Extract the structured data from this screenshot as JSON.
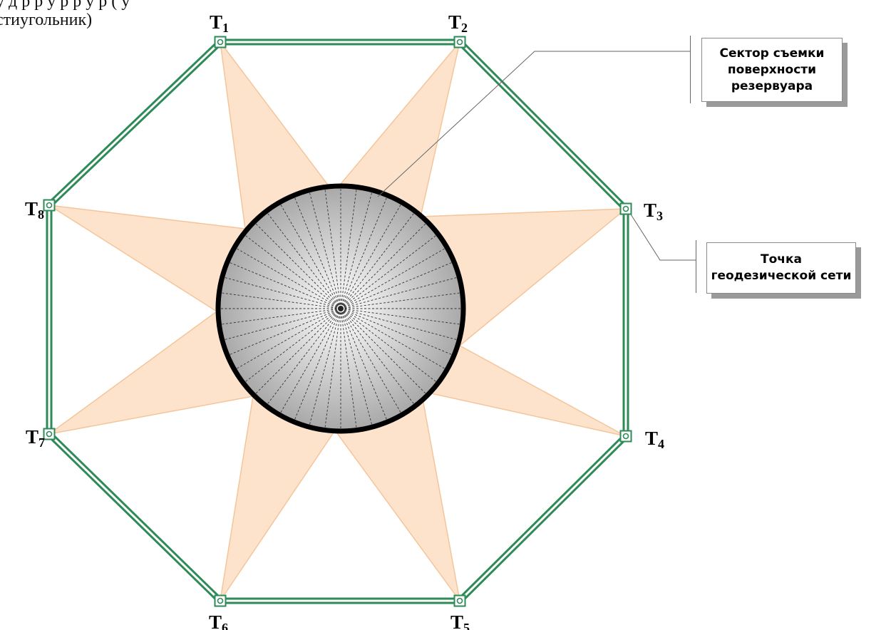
{
  "header": {
    "line1": "у                  д                                   р                                                     р  у  р  р  у р  (      у",
    "line2": "стиугольник)"
  },
  "vertices": [
    {
      "letter": "T",
      "index": "1"
    },
    {
      "letter": "T",
      "index": "2"
    },
    {
      "letter": "T",
      "index": "3"
    },
    {
      "letter": "T",
      "index": "4"
    },
    {
      "letter": "T",
      "index": "5"
    },
    {
      "letter": "T",
      "index": "6"
    },
    {
      "letter": "T",
      "index": "7"
    },
    {
      "letter": "T",
      "index": "8"
    }
  ],
  "callouts": {
    "sector": {
      "lines": [
        "Сектор съемки",
        "поверхности",
        "резервуара"
      ]
    },
    "geodetic_point": {
      "lines": [
        "Точка",
        "геодезической сети"
      ]
    }
  },
  "colors": {
    "octagon": "#2e8b57",
    "sector_fill": "#fde3cc",
    "sector_stroke": "#f5c59a",
    "tank_rim": "#000000",
    "tank_center": "#ffffff",
    "tank_edge": "#a8a8a8"
  }
}
